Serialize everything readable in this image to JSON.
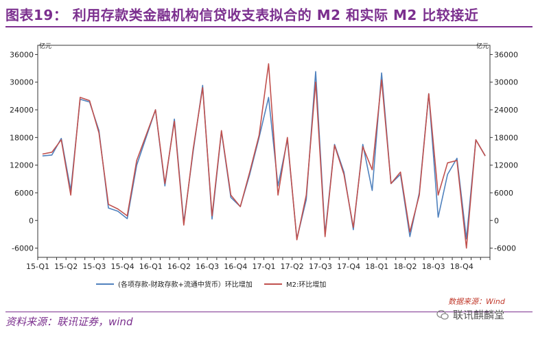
{
  "header": {
    "title": "图表19：  利用存款类金融机构信贷收支表拟合的 M2 和实际 M2 比较接近"
  },
  "footer": {
    "source": "资料来源：联讯证券，wind",
    "wind_source": "数据来源：Wind",
    "watermark": "联讯麒麟堂"
  },
  "colors": {
    "series1": "#4f81bd",
    "series2": "#c0504d",
    "accent": "#7b2f8e"
  },
  "chart_data": {
    "type": "line",
    "title": "利用存款类金融机构信贷收支表拟合的 M2 和实际 M2 比较接近",
    "ylabel_left": "亿元",
    "ylabel_right": "亿元",
    "ylim": [
      -8000,
      38000
    ],
    "yticks": [
      -6000,
      0,
      6000,
      12000,
      18000,
      24000,
      30000,
      36000
    ],
    "xtick_labels": [
      "15-Q1",
      "15-Q2",
      "15-Q3",
      "15-Q4",
      "16-Q1",
      "16-Q2",
      "16-Q3",
      "16-Q4",
      "17-Q1",
      "17-Q2",
      "17-Q3",
      "17-Q4",
      "18-Q1",
      "18-Q2",
      "18-Q3",
      "18-Q4"
    ],
    "points_per_quarter": 3,
    "series": [
      {
        "name": "(各项存款-财政存款+流通中货币）环比增加",
        "values": [
          14000,
          14200,
          17800,
          6500,
          26300,
          25700,
          19500,
          2700,
          2000,
          400,
          12000,
          18000,
          24000,
          7500,
          22000,
          -500,
          15000,
          29300,
          300,
          19300,
          5000,
          3000,
          10000,
          18000,
          26700,
          7500,
          17500,
          -4000,
          4500,
          32300,
          -3000,
          16500,
          10500,
          -2000,
          16500,
          6500,
          32000,
          8000,
          10000,
          -3500,
          6000,
          27500,
          700,
          10000,
          13500,
          -4000,
          17500,
          14000
        ]
      },
      {
        "name": "M2:环比增加",
        "values": [
          14400,
          14800,
          17500,
          5500,
          26700,
          26000,
          19000,
          3500,
          2500,
          1000,
          13000,
          18500,
          24000,
          8000,
          21500,
          -1000,
          15500,
          28800,
          1000,
          19500,
          5500,
          3000,
          10500,
          18500,
          34000,
          5500,
          18000,
          -4200,
          5500,
          30000,
          -3500,
          16300,
          10000,
          -1500,
          16000,
          11000,
          30500,
          8000,
          10500,
          -2500,
          5500,
          27500,
          5500,
          12500,
          13000,
          -6000,
          17500,
          14000
        ]
      }
    ],
    "legend": [
      "(各项存款-财政存款+流通中货币）环比增加",
      "M2:环比增加"
    ],
    "legend_position": "bottom"
  }
}
